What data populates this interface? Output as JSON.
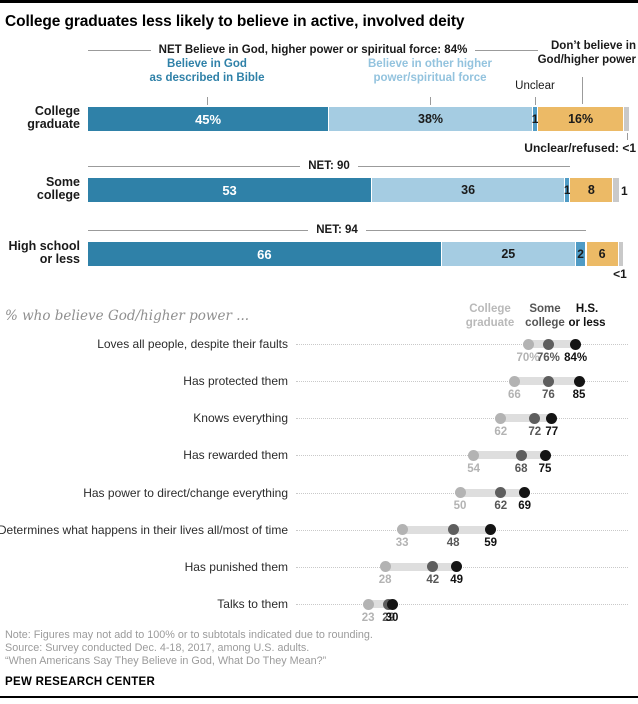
{
  "header": {
    "title": "College graduates less likely to believe in active, involved deity"
  },
  "colors": {
    "dark_blue": "#2f81a8",
    "light_blue": "#a5cce2",
    "medium_blue": "#4f9bc5",
    "gold": "#ecba66",
    "gray_segment": "#c9c9c9",
    "net_line": "#9b9b9b",
    "dot_college_grad": "#b3b3b3",
    "dot_some_college": "#5e5e5e",
    "dot_hs_or_less": "#141414"
  },
  "chart_data": [
    {
      "type": "bar",
      "orientation": "horizontal_stacked",
      "xlim": [
        0,
        100
      ],
      "categories": [
        "College\ngraduate",
        "Some\ncollege",
        "High school\nor less"
      ],
      "series": [
        {
          "name": "Believe in God as described in Bible",
          "values": [
            45,
            53,
            66
          ],
          "color": "#2f81a8"
        },
        {
          "name": "Believe in other higher power/spiritual force",
          "values": [
            38,
            36,
            25
          ],
          "color": "#a5cce2"
        },
        {
          "name": "Unclear",
          "values": [
            1,
            1,
            2
          ],
          "color": "#4f9bc5"
        },
        {
          "name": "Don't believe in God/higher power",
          "values": [
            16,
            8,
            6
          ],
          "color": "#ecba66"
        },
        {
          "name": "Unclear/refused",
          "values": [
            0.5,
            1,
            0.5
          ],
          "color": "#c9c9c9"
        }
      ],
      "bar_labels": [
        [
          "45%",
          "38%",
          "1",
          "16%"
        ],
        [
          "53",
          "36",
          "1",
          "8"
        ],
        [
          "66",
          "25",
          "2",
          "6"
        ]
      ],
      "net_labels": [
        "NET Believe in God, higher power or spiritual force: 84%",
        "NET: 90",
        "NET: 94"
      ],
      "annotations": {
        "legend_dark": "Believe in God\nas described in Bible",
        "legend_light": "Believe in other higher\npower/spiritual force",
        "legend_unclear": "Unclear",
        "legend_dont": "Don’t believe in\nGod/higher power",
        "row1_unclear_refused": "Unclear/refused: <1",
        "row2_unclear_refused": "1",
        "row3_unclear_refused": "<1"
      }
    },
    {
      "type": "scatter",
      "title": "% who believe God/higher power ...",
      "xlim": [
        0,
        100
      ],
      "col_headers": [
        "College\ngraduate",
        "Some\ncollege",
        "H.S.\nor less"
      ],
      "categories": [
        "Loves all people, despite their faults",
        "Has protected them",
        "Knows everything",
        "Has rewarded them",
        "Has power to direct/change everything",
        "Determines what happens in their lives all/most of time",
        "Has punished them",
        "Talks to them"
      ],
      "series": [
        {
          "name": "College graduate",
          "values": [
            70,
            66,
            62,
            54,
            50,
            33,
            28,
            23
          ]
        },
        {
          "name": "Some college",
          "values": [
            76,
            76,
            72,
            68,
            62,
            48,
            42,
            29
          ]
        },
        {
          "name": "H.S. or less",
          "values": [
            84,
            85,
            77,
            75,
            69,
            59,
            49,
            30
          ]
        }
      ],
      "value_labels": [
        [
          "70%",
          "76%",
          "84%"
        ],
        [
          "66",
          "76",
          "85"
        ],
        [
          "62",
          "72",
          "77"
        ],
        [
          "54",
          "68",
          "75"
        ],
        [
          "50",
          "62",
          "69"
        ],
        [
          "33",
          "48",
          "59"
        ],
        [
          "28",
          "42",
          "49"
        ],
        [
          "23",
          "29",
          "30"
        ]
      ]
    }
  ],
  "footer": {
    "note": "Note: Figures may not add to 100% or to subtotals indicated due to rounding.",
    "source": "Source: Survey conducted Dec. 4-18, 2017, among U.S. adults.",
    "report": "“When Americans Say They Believe in God, What Do They Mean?”",
    "brand": "PEW RESEARCH CENTER"
  }
}
